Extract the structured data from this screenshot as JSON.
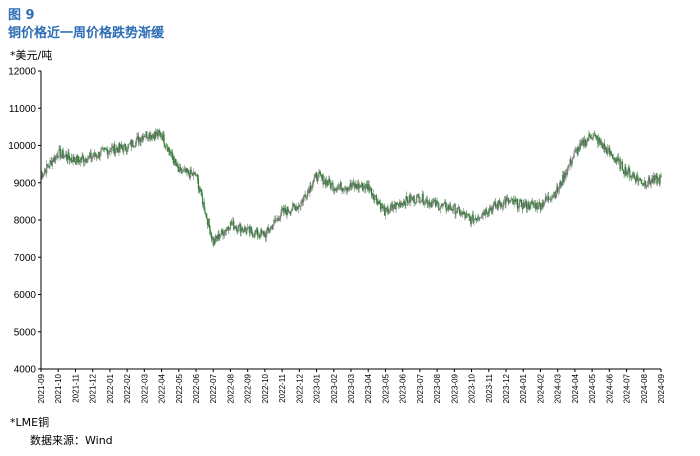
{
  "figure_label": "图 9",
  "title": "铜价格近一周价格跌势渐缓",
  "unit_label": "*美元/吨",
  "note": "*LME铜",
  "source": "数据来源：Wind",
  "colors": {
    "title": "#2f6db5",
    "up": "#7f7f7f",
    "down": "#2e7d32"
  },
  "chart_data": {
    "type": "candlestick",
    "ylim": [
      4000,
      12000
    ],
    "yticks": [
      4000,
      5000,
      6000,
      7000,
      8000,
      9000,
      10000,
      11000,
      12000
    ],
    "xticks": [
      "2021-09",
      "2021-10",
      "2021-11",
      "2021-12",
      "2022-01",
      "2022-02",
      "2022-03",
      "2022-04",
      "2022-05",
      "2022-06",
      "2022-07",
      "2022-08",
      "2022-09",
      "2022-10",
      "2022-11",
      "2022-12",
      "2023-01",
      "2023-02",
      "2023-03",
      "2023-04",
      "2023-05",
      "2023-06",
      "2023-07",
      "2023-08",
      "2023-09",
      "2023-10",
      "2023-11",
      "2023-12",
      "2024-01",
      "2024-02",
      "2024-03",
      "2024-04",
      "2024-05",
      "2024-06",
      "2024-07",
      "2024-08",
      "2024-09"
    ],
    "grid": false,
    "monthly_close_approx": [
      [
        "2021-09",
        9200
      ],
      [
        "2021-10",
        9800
      ],
      [
        "2021-11",
        9600
      ],
      [
        "2021-12",
        9700
      ],
      [
        "2022-01",
        9900
      ],
      [
        "2022-02",
        9950
      ],
      [
        "2022-03",
        10300
      ],
      [
        "2022-04",
        10300
      ],
      [
        "2022-05",
        9300
      ],
      [
        "2022-06",
        9200
      ],
      [
        "2022-07",
        7400
      ],
      [
        "2022-08",
        7900
      ],
      [
        "2022-09",
        7700
      ],
      [
        "2022-10",
        7600
      ],
      [
        "2022-11",
        8200
      ],
      [
        "2022-12",
        8400
      ],
      [
        "2023-01",
        9200
      ],
      [
        "2023-02",
        8900
      ],
      [
        "2023-03",
        8900
      ],
      [
        "2023-04",
        8900
      ],
      [
        "2023-05",
        8200
      ],
      [
        "2023-06",
        8500
      ],
      [
        "2023-07",
        8600
      ],
      [
        "2023-08",
        8400
      ],
      [
        "2023-09",
        8300
      ],
      [
        "2023-10",
        8000
      ],
      [
        "2023-11",
        8300
      ],
      [
        "2023-12",
        8500
      ],
      [
        "2024-01",
        8400
      ],
      [
        "2024-02",
        8400
      ],
      [
        "2024-03",
        8800
      ],
      [
        "2024-04",
        9800
      ],
      [
        "2024-05",
        10300
      ],
      [
        "2024-06",
        9800
      ],
      [
        "2024-07",
        9300
      ],
      [
        "2024-08",
        9000
      ],
      [
        "2024-09",
        9100
      ]
    ]
  }
}
